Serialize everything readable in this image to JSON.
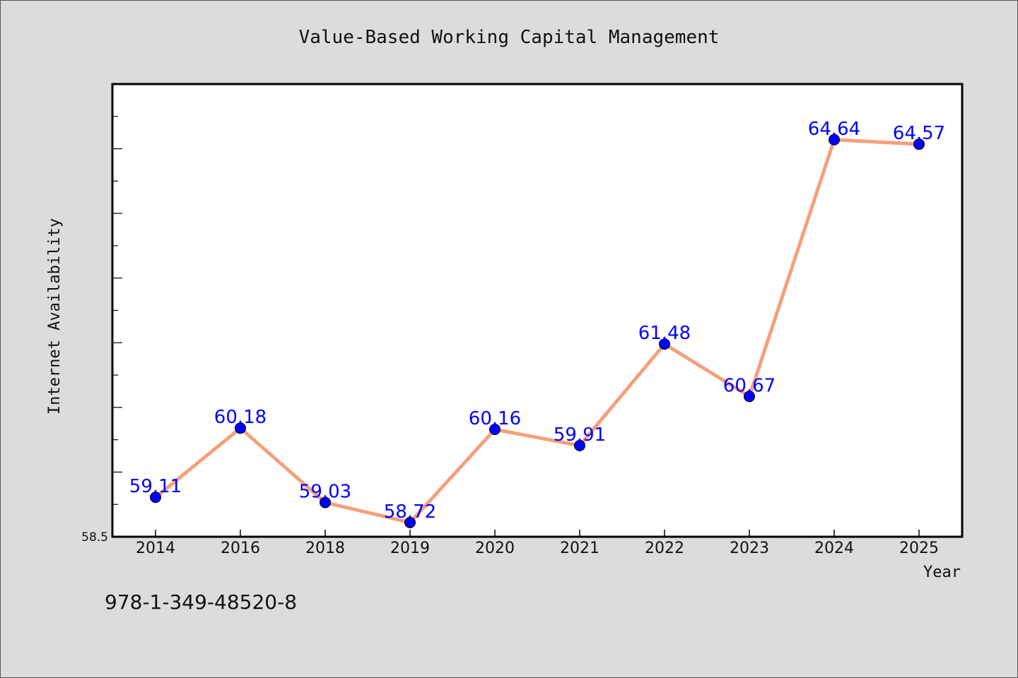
{
  "chart_data": {
    "type": "line",
    "title": "Value-Based Working Capital Management",
    "xlabel": "Year",
    "ylabel": "Internet Availability",
    "categories": [
      "2014",
      "2016",
      "2018",
      "2019",
      "2020",
      "2021",
      "2022",
      "2023",
      "2024",
      "2025"
    ],
    "series": [
      {
        "values": [
          59.11,
          60.18,
          59.03,
          58.72,
          60.16,
          59.91,
          61.48,
          60.67,
          64.64,
          64.57
        ],
        "labels": [
          "59.11",
          "60.18",
          "59.03",
          "58.72",
          "60.16",
          "59.91",
          "61.48",
          "60.67",
          "64.64",
          "64.57"
        ]
      }
    ],
    "ylim": [
      58.5,
      65.5
    ],
    "y_tick_label": "58.5",
    "grid": false,
    "legend": "none",
    "colors": {
      "line": "#f4a07c",
      "marker": "#0000ff",
      "marker_edge": "#000000",
      "label": "#0000ff",
      "plot_bg": "#ffffff",
      "figure_bg": "#dcdcdc"
    }
  },
  "annotation": "978-1-349-48520-8"
}
